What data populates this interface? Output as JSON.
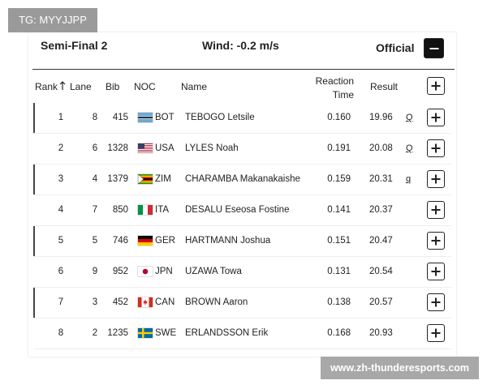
{
  "watermark": "TG: MYYJJPP",
  "header": {
    "title": "Semi-Final 2",
    "wind": "Wind: -0.2 m/s",
    "status": "Official"
  },
  "table": {
    "columns": [
      "Rank",
      "Lane",
      "Bib",
      "NOC",
      "Name",
      "Reaction Time",
      "Result"
    ],
    "rows": [
      [
        "1",
        "8",
        "415",
        "BOT",
        "TEBOGO Letsile",
        "0.160",
        "19.96",
        "Q"
      ],
      [
        "2",
        "6",
        "1328",
        "USA",
        "LYLES Noah",
        "0.191",
        "20.08",
        "Q"
      ],
      [
        "3",
        "4",
        "1379",
        "ZIM",
        "CHARAMBA Makanakaishe",
        "0.159",
        "20.31",
        "q"
      ],
      [
        "4",
        "7",
        "850",
        "ITA",
        "DESALU Eseosa Fostine",
        "0.141",
        "20.37",
        null
      ],
      [
        "5",
        "5",
        "746",
        "GER",
        "HARTMANN Joshua",
        "0.151",
        "20.47",
        null
      ],
      [
        "6",
        "9",
        "952",
        "JPN",
        "UZAWA Towa",
        "0.131",
        "20.54",
        null
      ],
      [
        "7",
        "3",
        "452",
        "CAN",
        "BROWN Aaron",
        "0.138",
        "20.57",
        null
      ],
      [
        "8",
        "2",
        "1235",
        "SWE",
        "ERLANDSSON Erik",
        "0.168",
        "20.93",
        null
      ]
    ]
  },
  "footer_watermark": "www.zh-thunderesports.com"
}
